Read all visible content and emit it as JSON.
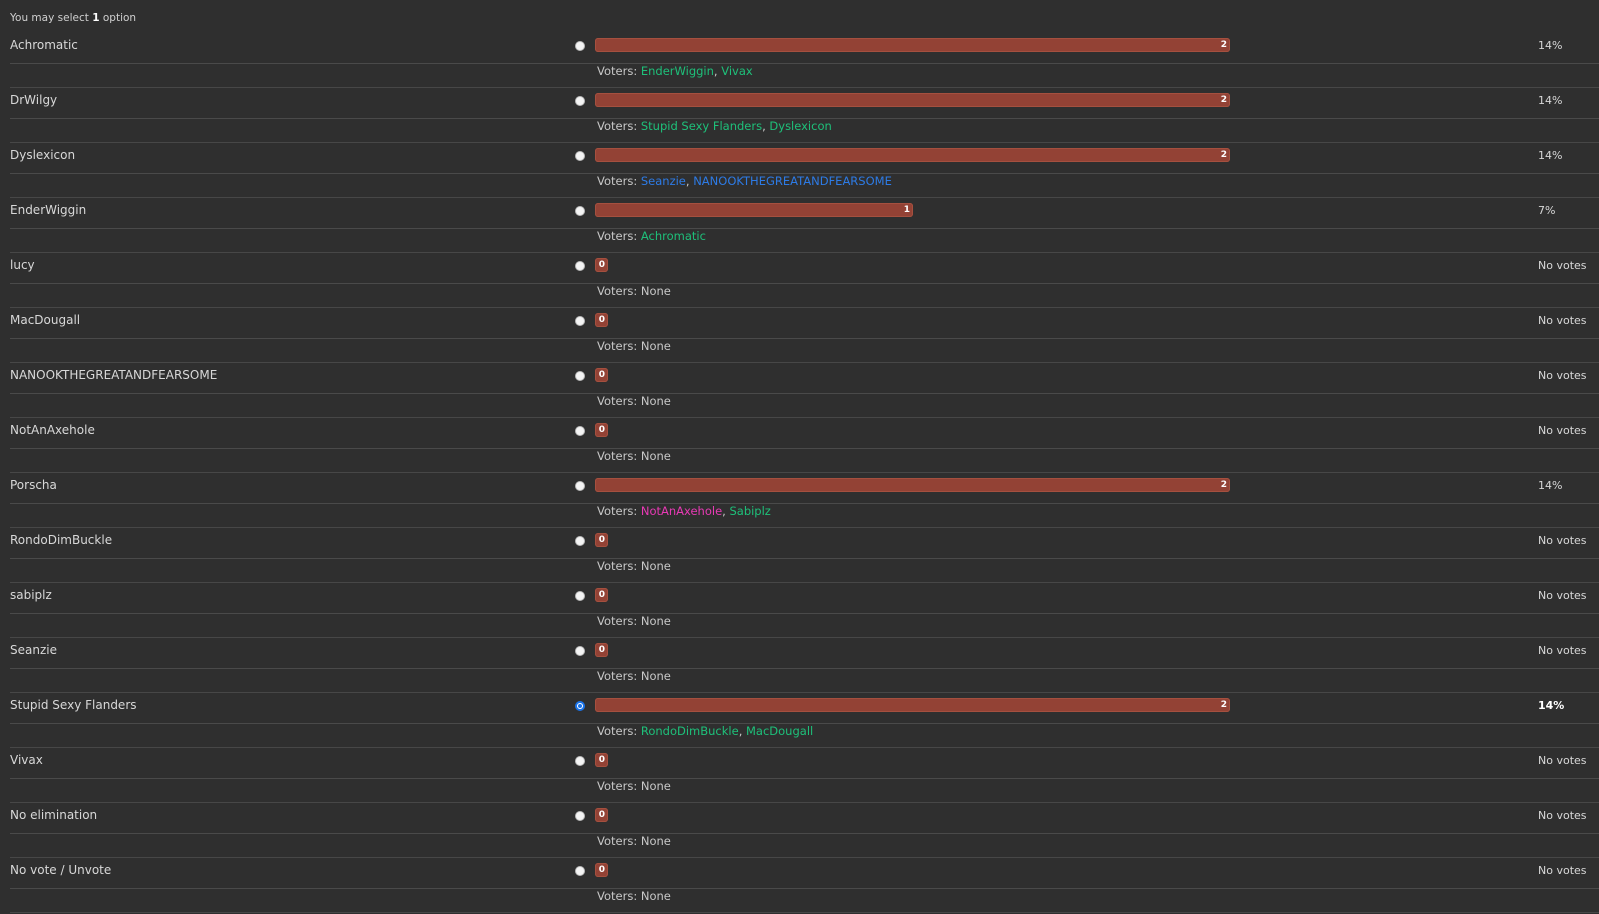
{
  "header": {
    "prefix": "You may select",
    "count": "1",
    "suffix": "option"
  },
  "voters_label": "Voters:",
  "options": [
    {
      "name": "Achromatic",
      "votes": 2,
      "percent": "14%",
      "selected": false,
      "voters": [
        {
          "name": "EnderWiggin",
          "color": "#1ec07a"
        },
        {
          "name": "Vivax",
          "color": "#1ec07a"
        }
      ]
    },
    {
      "name": "DrWilgy",
      "votes": 2,
      "percent": "14%",
      "selected": false,
      "voters": [
        {
          "name": "Stupid Sexy Flanders",
          "color": "#1ec07a"
        },
        {
          "name": "Dyslexicon",
          "color": "#1ec07a"
        }
      ]
    },
    {
      "name": "Dyslexicon",
      "votes": 2,
      "percent": "14%",
      "selected": false,
      "voters": [
        {
          "name": "Seanzie",
          "color": "#2d7be6"
        },
        {
          "name": "NANOOKTHEGREATANDFEARSOME",
          "color": "#2d7be6"
        }
      ]
    },
    {
      "name": "EnderWiggin",
      "votes": 1,
      "percent": "7%",
      "selected": false,
      "voters": [
        {
          "name": "Achromatic",
          "color": "#1ec07a"
        }
      ]
    },
    {
      "name": "lucy",
      "votes": 0,
      "percent": "No votes",
      "selected": false,
      "voters": [],
      "none_text": "None"
    },
    {
      "name": "MacDougall",
      "votes": 0,
      "percent": "No votes",
      "selected": false,
      "voters": [],
      "none_text": "None"
    },
    {
      "name": "NANOOKTHEGREATANDFEARSOME",
      "votes": 0,
      "percent": "No votes",
      "selected": false,
      "voters": [],
      "none_text": "None"
    },
    {
      "name": "NotAnAxehole",
      "votes": 0,
      "percent": "No votes",
      "selected": false,
      "voters": [],
      "none_text": "None"
    },
    {
      "name": "Porscha",
      "votes": 2,
      "percent": "14%",
      "selected": false,
      "voters": [
        {
          "name": "NotAnAxehole",
          "color": "#e83ab5"
        },
        {
          "name": "Sabiplz",
          "color": "#1ec07a"
        }
      ]
    },
    {
      "name": "RondoDimBuckle",
      "votes": 0,
      "percent": "No votes",
      "selected": false,
      "voters": [],
      "none_text": "None"
    },
    {
      "name": "sabiplz",
      "votes": 0,
      "percent": "No votes",
      "selected": false,
      "voters": [],
      "none_text": "None"
    },
    {
      "name": "Seanzie",
      "votes": 0,
      "percent": "No votes",
      "selected": false,
      "voters": [],
      "none_text": "None"
    },
    {
      "name": "Stupid Sexy Flanders",
      "votes": 2,
      "percent": "14%",
      "selected": true,
      "voters": [
        {
          "name": "RondoDimBuckle",
          "color": "#1ec07a"
        },
        {
          "name": "MacDougall",
          "color": "#1ec07a"
        }
      ]
    },
    {
      "name": "Vivax",
      "votes": 0,
      "percent": "No votes",
      "selected": false,
      "voters": [],
      "none_text": "None"
    },
    {
      "name": "No elimination",
      "votes": 0,
      "percent": "No votes",
      "selected": false,
      "voters": [],
      "none_text": "None"
    },
    {
      "name": "No vote / Unvote",
      "votes": 0,
      "percent": "No votes",
      "selected": false,
      "voters": [],
      "none_text": "None"
    }
  ],
  "colors": {
    "bar": "#934235",
    "background": "#2f2f2f",
    "selected_radio": "#1a73e8"
  }
}
